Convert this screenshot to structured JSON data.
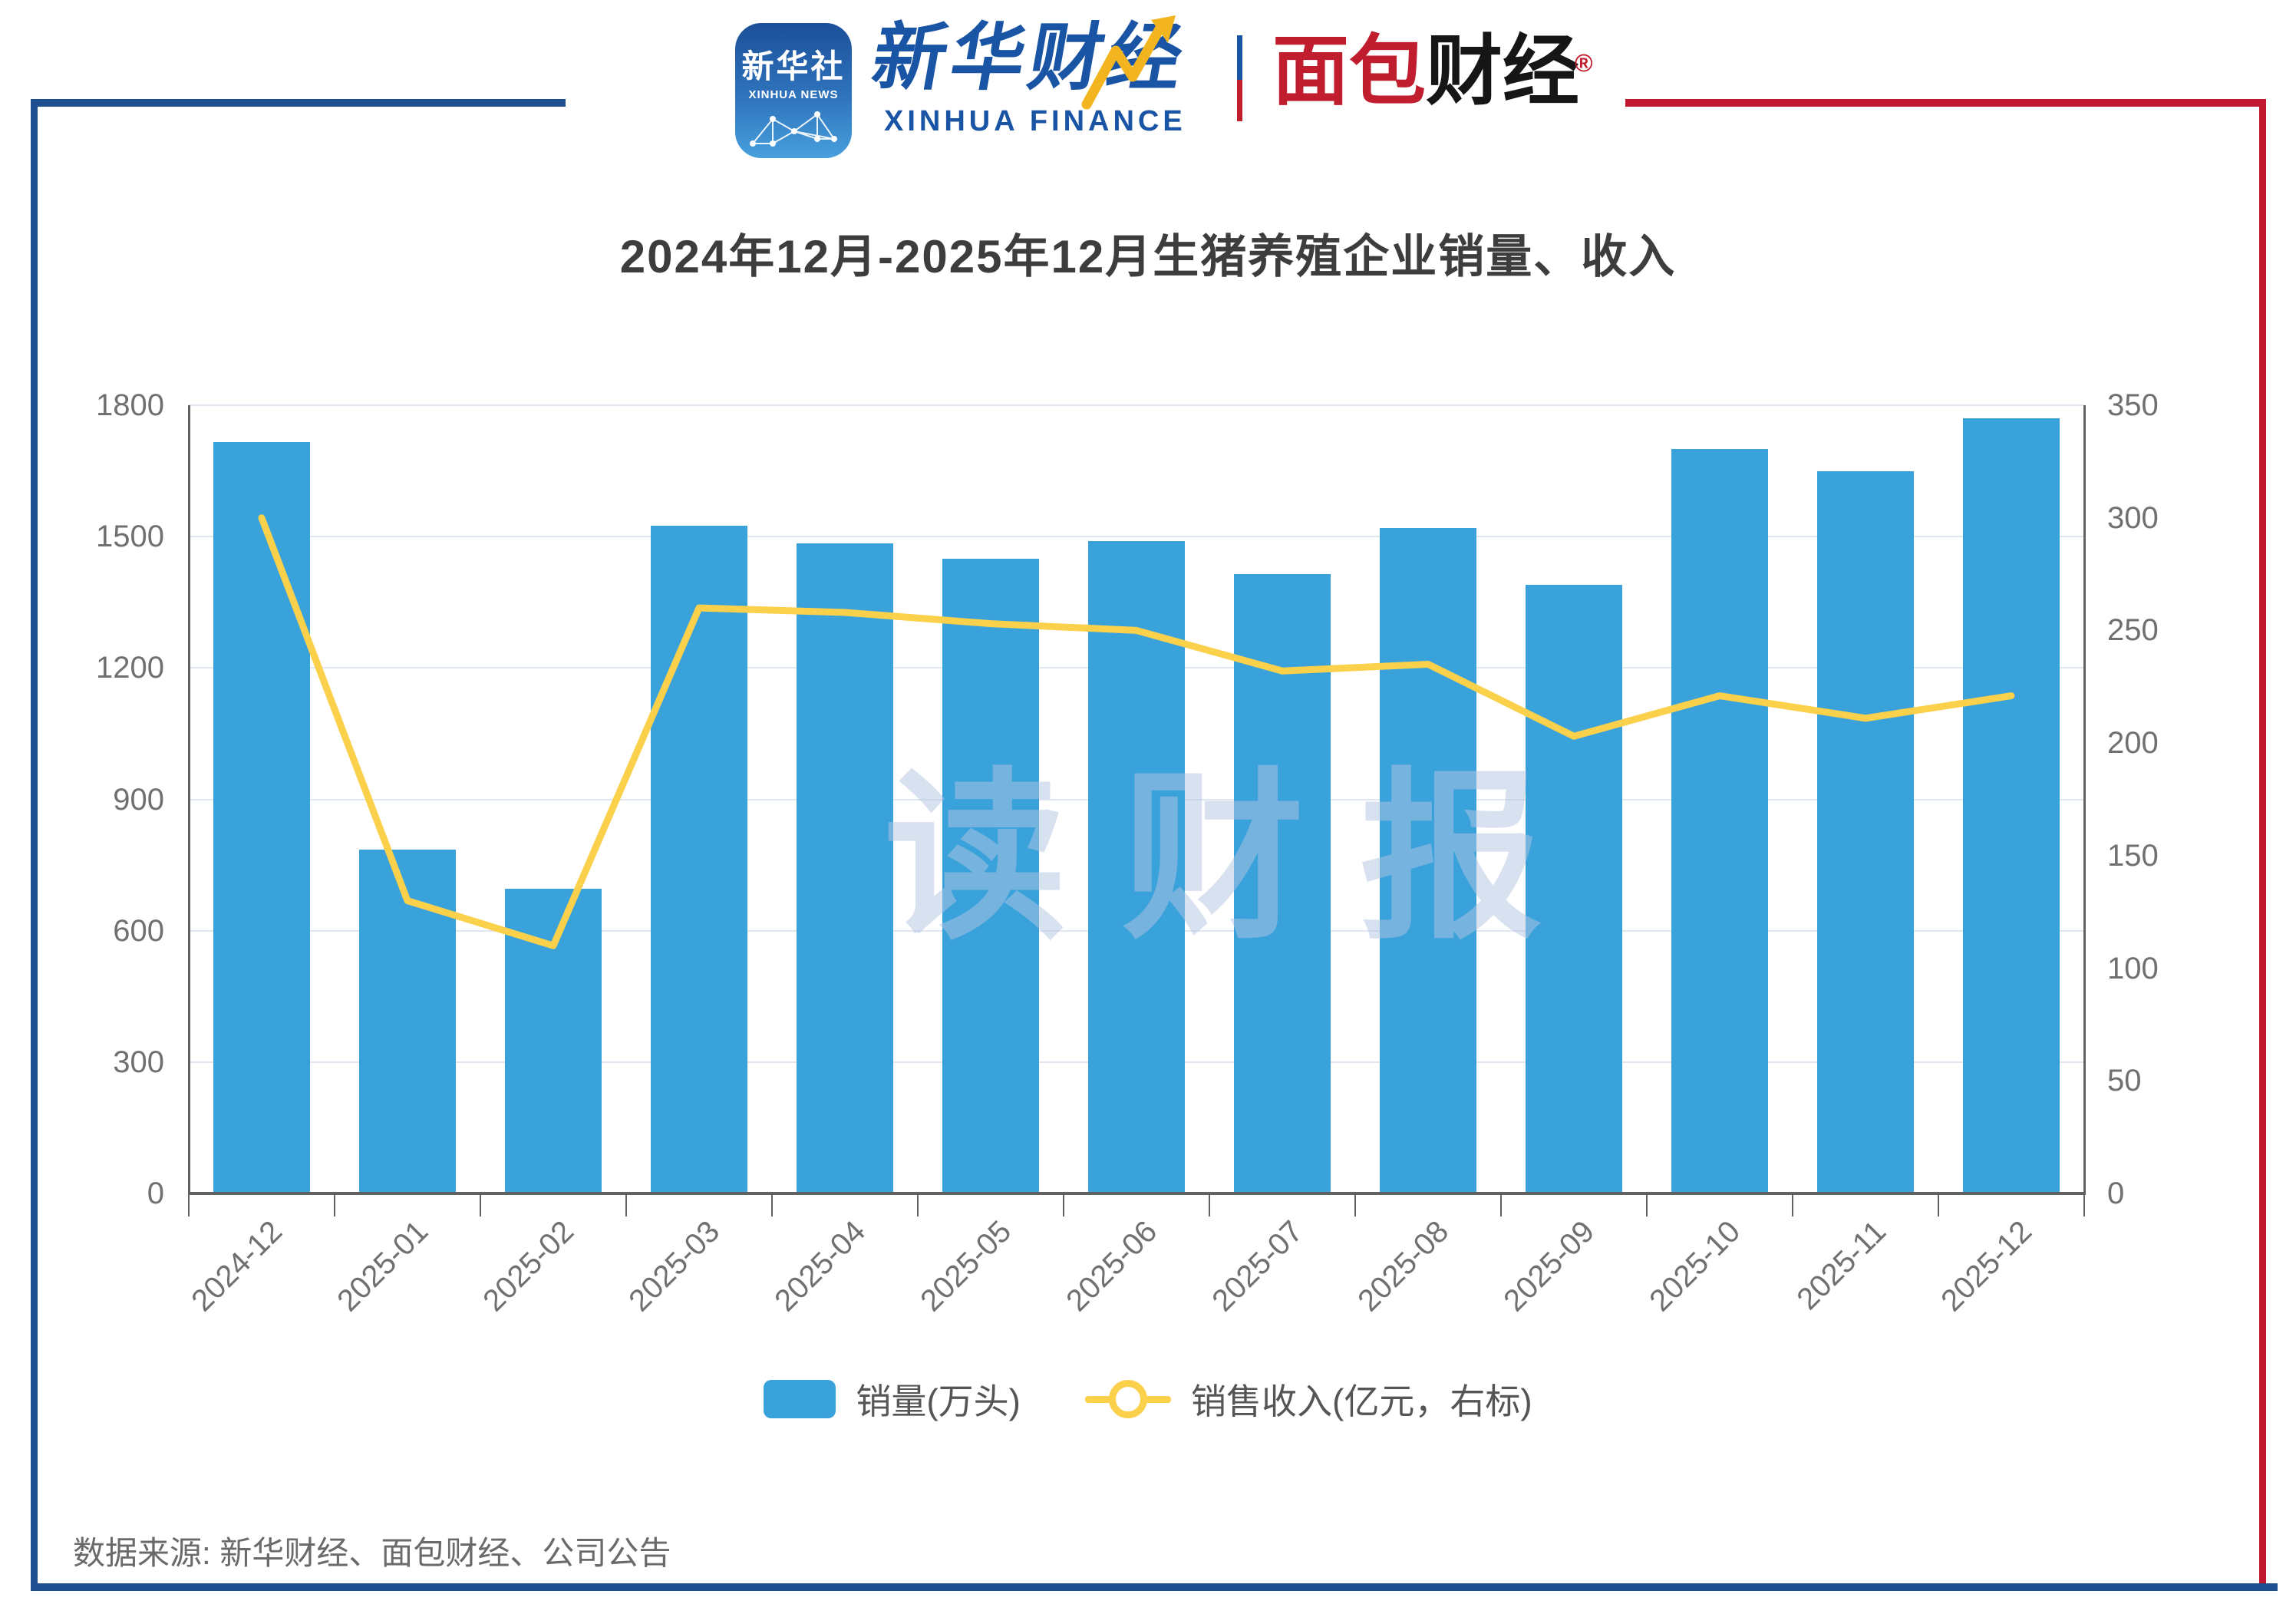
{
  "header": {
    "xinhua_icon": {
      "cn": "新华社",
      "en": "XINHUA NEWS"
    },
    "xinhua_finance": {
      "cn": "新华财经",
      "en": "XINHUA FINANCE"
    },
    "bread_finance": {
      "cn_red": "面包",
      "cn_black": "财经",
      "reg_mark": "®"
    }
  },
  "watermark": "读财报",
  "footer": {
    "source": "数据来源: 新华财经、面包财经、公司公告"
  },
  "colors": {
    "bar": "#3aa2db",
    "line": "#fbd04b",
    "grid": "#e0e6f2",
    "axis": "#616161",
    "axis_label": "#707070",
    "title": "#3d3d3d",
    "legend_text": "#555555",
    "frame_blue": "#1e4e8f",
    "frame_red": "#c0182e",
    "logo_blue": "#1a55a5",
    "logo_red": "#c01e2e"
  },
  "chart_data": {
    "type": "bar",
    "title": "2024年12月-2025年12月生猪养殖企业销量、收入",
    "categories": [
      "2024-12",
      "2025-01",
      "2025-02",
      "2025-03",
      "2025-04",
      "2025-05",
      "2025-06",
      "2025-07",
      "2025-08",
      "2025-09",
      "2025-10",
      "2025-11",
      "2025-12"
    ],
    "series": [
      {
        "name": "销量(万头)",
        "type": "bar",
        "axis": "left",
        "values": [
          1715,
          785,
          695,
          1525,
          1485,
          1450,
          1490,
          1415,
          1520,
          1390,
          1700,
          1650,
          1770
        ]
      },
      {
        "name": "销售收入(亿元，右标)",
        "type": "line",
        "axis": "right",
        "values": [
          300,
          130,
          110,
          260,
          258,
          253,
          250,
          232,
          235,
          203,
          221,
          211,
          221
        ]
      }
    ],
    "left_axis": {
      "min": 0,
      "max": 1800,
      "step": 300,
      "ticks": [
        "0",
        "300",
        "600",
        "900",
        "1200",
        "1500",
        "1800"
      ]
    },
    "right_axis": {
      "min": 0,
      "max": 350,
      "step": 50,
      "ticks": [
        "0",
        "50",
        "100",
        "150",
        "200",
        "250",
        "300",
        "350"
      ]
    },
    "legend_position": "bottom",
    "grid": true
  }
}
